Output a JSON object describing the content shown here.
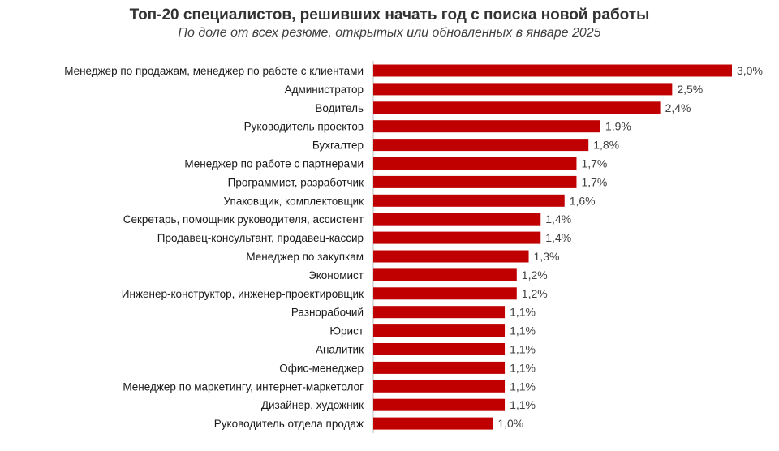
{
  "chart_data": {
    "type": "bar",
    "orientation": "horizontal",
    "title": "Топ-20 специалистов, решивших начать год с поиска новой работы",
    "subtitle": "По доле от всех резюме, открытых или обновленных  в январе  2025",
    "categories": [
      "Менеджер по продажам, менеджер по работе с клиентами",
      "Администратор",
      "Водитель",
      "Руководитель проектов",
      "Бухгалтер",
      "Менеджер по работе с партнерами",
      "Программист, разработчик",
      "Упаковщик, комплектовщик",
      "Секретарь, помощник руководителя, ассистент",
      "Продавец-консультант, продавец-кассир",
      "Менеджер по закупкам",
      "Экономист",
      "Инженер-конструктор, инженер-проектировщик",
      "Разнорабочий",
      "Юрист",
      "Аналитик",
      "Офис-менеджер",
      "Менеджер по маркетингу, интернет-маркетолог",
      "Дизайнер, художник",
      "Руководитель отдела продаж"
    ],
    "values": [
      3.0,
      2.5,
      2.4,
      1.9,
      1.8,
      1.7,
      1.7,
      1.6,
      1.4,
      1.4,
      1.3,
      1.2,
      1.2,
      1.1,
      1.1,
      1.1,
      1.1,
      1.1,
      1.1,
      1.0
    ],
    "labels": [
      "3,0%",
      "2,5%",
      "2,4%",
      "1,9%",
      "1,8%",
      "1,7%",
      "1,7%",
      "1,6%",
      "1,4%",
      "1,4%",
      "1,3%",
      "1,2%",
      "1,2%",
      "1,1%",
      "1,1%",
      "1,1%",
      "1,1%",
      "1,1%",
      "1,1%",
      "1,0%"
    ],
    "unit": "%",
    "bar_color": "#c00000",
    "xlim": [
      0,
      3.0
    ],
    "grid": false,
    "legend": "none"
  }
}
